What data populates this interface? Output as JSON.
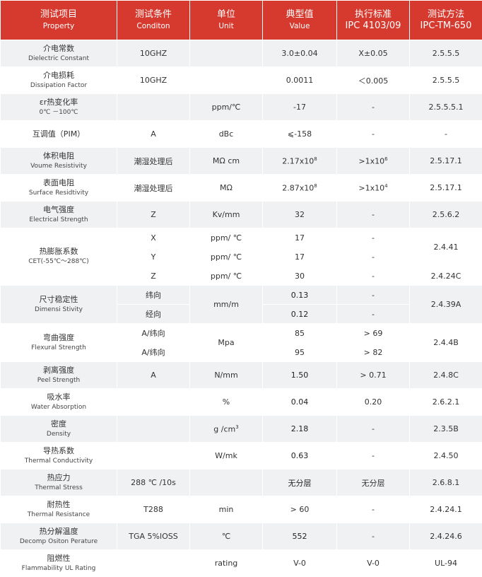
{
  "header": [
    {
      "zh": "测试项目",
      "en": "Property"
    },
    {
      "zh": "测试条件",
      "en": "Conditon"
    },
    {
      "zh": "单位",
      "en": "Unit"
    },
    {
      "zh": "典型值",
      "en": "Value"
    },
    {
      "zh": "执行标准",
      "en": "IPC 4103/09"
    },
    {
      "zh": "测试方法",
      "en": "IPC-TM-650"
    }
  ],
  "rows": {
    "dk": {
      "zh": "介电常数",
      "en": "Dielectric Constant",
      "cond": "10GHZ",
      "unit": "",
      "value": "3.0±0.04",
      "std": "X±0.05",
      "method": "2.5.5.5"
    },
    "df": {
      "zh": "介电损耗",
      "en": "Dissipation Factor",
      "cond": "10GHZ",
      "unit": "",
      "value": "0.0011",
      "std": "＜0.005",
      "method": "2.5.5.5"
    },
    "tcdk": {
      "zh": "εr热变化率",
      "en": "0℃ －100℃",
      "cond": "",
      "unit": "ppm/℃",
      "value": "-17",
      "std": "-",
      "method": "2.5.5.5.1"
    },
    "pim": {
      "zh": "互调值（PIM）",
      "cond": "A",
      "unit": "dBc",
      "value": "⩽-158",
      "std": "-",
      "method": "-"
    },
    "vr": {
      "zh": "体积电阻",
      "en": "Voume Resistivity",
      "cond": "潮湿处理后",
      "unit": "MΩ cm",
      "value": "2.17x10",
      "value_sup": "8",
      "std": ">1x10",
      "std_sup": "6",
      "method": "2.5.17.1"
    },
    "sr": {
      "zh": "表面电阻",
      "en": "Surface Residtivity",
      "cond": "潮湿处理后",
      "unit": "MΩ",
      "value": "2.87x10",
      "value_sup": "8",
      "std": ">1x10",
      "std_sup": "4",
      "method": "2.5.17.1"
    },
    "es": {
      "zh": "电气强度",
      "en": "Electrical Strength",
      "cond": "Z",
      "unit": "Kv/mm",
      "value": "32",
      "std": "-",
      "method": "2.5.6.2"
    },
    "cte": {
      "zh": "热膨胀系数",
      "en": "CET(-55℃～288℃)",
      "sub": [
        {
          "cond": "X",
          "unit": "ppm/ ℃",
          "value": "17",
          "std": "-"
        },
        {
          "cond": "Y",
          "unit": "ppm/ ℃",
          "value": "17",
          "std": "-"
        },
        {
          "cond": "Z",
          "unit": "ppm/ ℃",
          "value": "30",
          "std": "-"
        }
      ],
      "method_xy": "2.4.41",
      "method_z": "2.4.24C"
    },
    "dim": {
      "zh": "尺寸稳定性",
      "en": "Dimensi Stivity",
      "unit": "mm/m",
      "method": "2.4.39A",
      "sub": [
        {
          "cond": "纬向",
          "value": "0.13",
          "std": "-"
        },
        {
          "cond": "经向",
          "value": "0.12",
          "std": "-"
        }
      ]
    },
    "flex": {
      "zh": "弯曲强度",
      "en": "Flexural Strength",
      "unit": "Mpa",
      "method": "2.4.4B",
      "sub": [
        {
          "cond": "A/纬向",
          "value": "85",
          "std": "> 69"
        },
        {
          "cond": "A/纬向",
          "value": "95",
          "std": "> 82"
        }
      ]
    },
    "peel": {
      "zh": "剥离强度",
      "en": "Peel Strength",
      "cond": "A",
      "unit": "N/mm",
      "value": "1.50",
      "std": "> 0.71",
      "method": "2.4.8C"
    },
    "water": {
      "zh": "吸水率",
      "en": "Water Absorption",
      "cond": "",
      "unit": "%",
      "value": "0.04",
      "std": "0.20",
      "method": "2.6.2.1"
    },
    "dens": {
      "zh": "密度",
      "en": "Density",
      "cond": "",
      "unit": "g /cm",
      "unit_sup": "3",
      "value": "2.18",
      "std": "-",
      "method": "2.3.5B"
    },
    "tc": {
      "zh": "导热系数",
      "en": "Thermal Conductivity",
      "cond": "",
      "unit": "W/mk",
      "value": "0.63",
      "std": "-",
      "method": "2.4.50"
    },
    "ts": {
      "zh": "热应力",
      "en": "Thermal Stress",
      "cond": "288 ℃ /10s",
      "unit": "",
      "value": "无分层",
      "std": "无分层",
      "method": "2.6.8.1"
    },
    "tr": {
      "zh": "耐热性",
      "en": "Thermal Resistance",
      "cond": "T288",
      "unit": "min",
      "value": "> 60",
      "std": "-",
      "method": "2.4.24.1"
    },
    "td": {
      "zh": "热分解温度",
      "en": "Decomp Ositon Perature",
      "cond": "TGA  5%lOSS",
      "unit": "℃",
      "value": "552",
      "std": "-",
      "method": "2.4.24.6"
    },
    "ul": {
      "zh": "阻燃性",
      "en": "Flammability UL Rating",
      "cond": "",
      "unit": "rating",
      "value": "V-0",
      "std": "V-0",
      "method": "UL-94"
    }
  },
  "colors": {
    "header_bg": "#d63a2f",
    "stripe": "#f0f1f3"
  }
}
